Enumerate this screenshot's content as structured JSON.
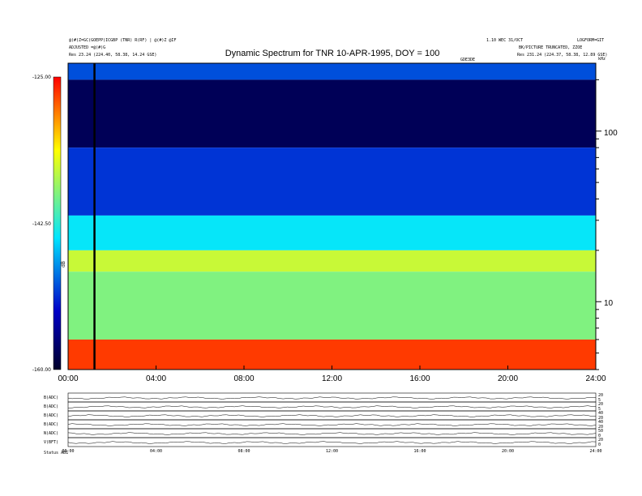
{
  "header": {
    "title": "Dynamic Spectrum for TNR 10-APR-1995, DOY = 100",
    "left_line1": "@(#)Z=GC(GOEPP)ICGBP (TNR) R(RF) | @(#)Z  @IF",
    "left_line2": "ADJUSTED =@(#)G",
    "left_line3": "Res    23.24 (224.40, 58.38, 14.24 GSE)",
    "right_line1": "1.10 WEC 31/OCT",
    "right_line1b": "LOGFORM=GIT",
    "right_line2": "BK/PICTURE TRUNCATED, ZZOE",
    "right_line3": "Res    231.24 (224.37, 58.38, 12.89 GSE)",
    "center_small": "GDE3DE",
    "khz_label": "kHz"
  },
  "chart_data": {
    "type": "heatmap",
    "title": "Dynamic Spectrum for TNR 10-APR-1995, DOY = 100",
    "xlabel": "",
    "ylabel": "",
    "x_ticks": [
      "00:00",
      "04:00",
      "08:00",
      "12:00",
      "16:00",
      "20:00",
      "24:00"
    ],
    "x_range_hours": [
      0,
      24
    ],
    "y_scale": "log",
    "y_range_khz": [
      4,
      250
    ],
    "y_tick_labels": [
      "100",
      "10"
    ],
    "y_tick_values": [
      100,
      10
    ],
    "colorbar": {
      "ticks": [
        "-125.00",
        "-142.50",
        "-160.00"
      ],
      "values": [
        -125.0,
        -142.5,
        -160.0
      ],
      "unit_label": "dB",
      "colors": [
        "#ff0000",
        "#ffff00",
        "#00e5ff",
        "#0000c8",
        "#00002a"
      ]
    },
    "marker_hour": 1.2,
    "bands": [
      {
        "from_khz": 200,
        "to_khz": 250,
        "level": -150
      },
      {
        "from_khz": 80,
        "to_khz": 200,
        "level": -158
      },
      {
        "from_khz": 32,
        "to_khz": 80,
        "level": -151
      },
      {
        "from_khz": 20,
        "to_khz": 32,
        "level": -144
      },
      {
        "from_khz": 15,
        "to_khz": 20,
        "level": -136
      },
      {
        "from_khz": 6,
        "to_khz": 15,
        "level": -139
      },
      {
        "from_khz": 4,
        "to_khz": 6,
        "level": -127
      }
    ]
  },
  "sub_panels": {
    "labels": [
      "B(ADC)",
      "B(ADC)",
      "B(ADC)",
      "B(ADC)",
      "N(ADC)",
      "V(BFT)"
    ],
    "right_ticks": [
      [
        "20",
        "5"
      ],
      [
        "20",
        "5"
      ],
      [
        "40",
        "20"
      ],
      [
        "40",
        "20"
      ],
      [
        "50",
        "0"
      ],
      [
        "20",
        "0"
      ]
    ],
    "x_ticks": [
      "00:00",
      "04:00",
      "08:00",
      "12:00",
      "16:00",
      "20:00",
      "24:00"
    ],
    "footer_left": "Status  AB1"
  }
}
